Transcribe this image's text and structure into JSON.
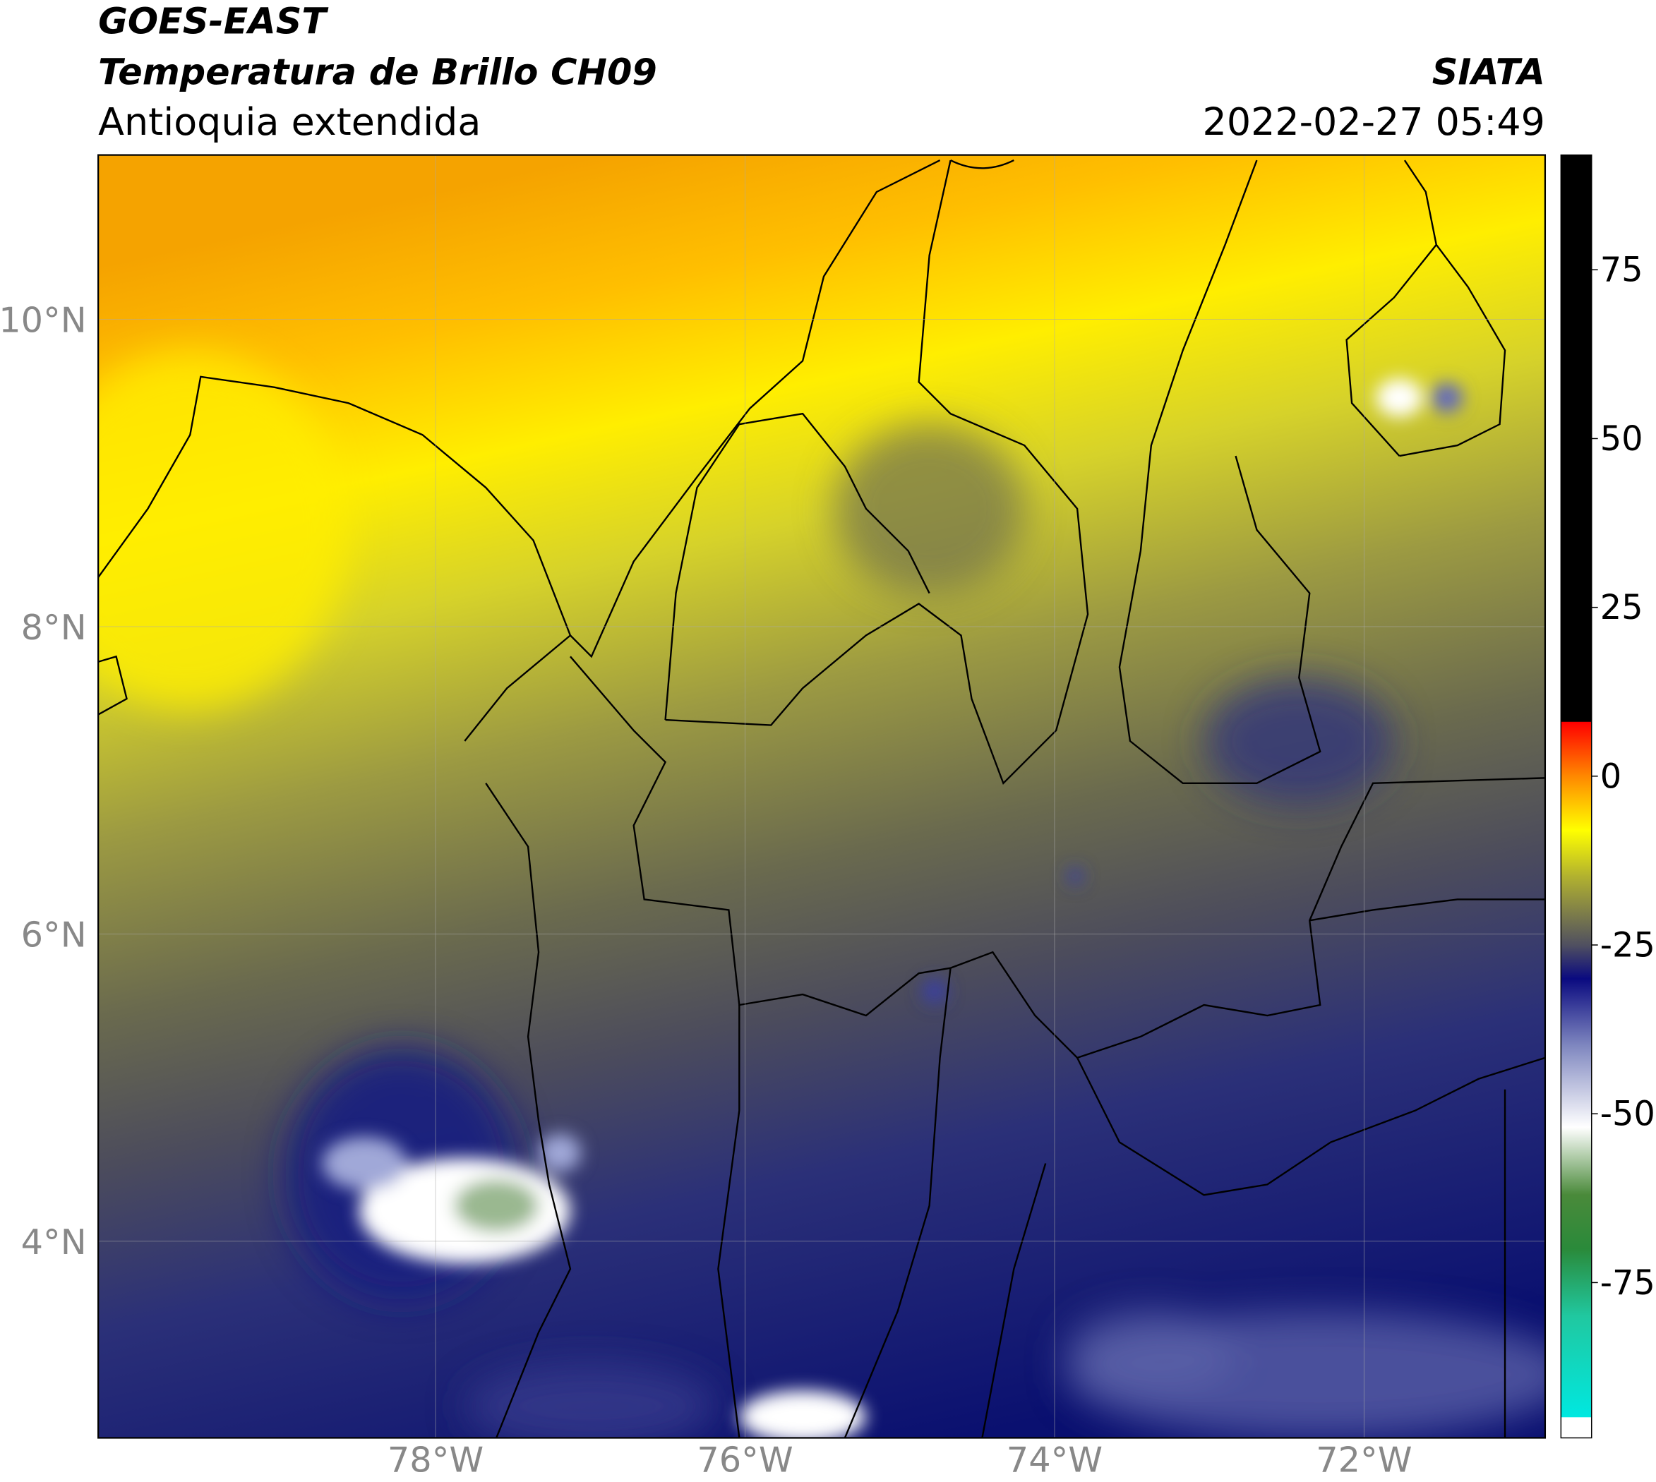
{
  "map": {
    "title": "GOES-EAST",
    "subtitle": "Temperatura de Brillo CH09",
    "region": "Antioquia extendida",
    "source": "SIATA",
    "datetime": "2022-02-27 05:49",
    "xlim": [
      -80.18,
      -70.83
    ],
    "ylim": [
      2.72,
      11.07
    ],
    "xticks": [
      {
        "value": -78,
        "label": "78°W"
      },
      {
        "value": -76,
        "label": "76°W"
      },
      {
        "value": -74,
        "label": "74°W"
      },
      {
        "value": -72,
        "label": "72°W"
      }
    ],
    "yticks": [
      {
        "value": 4,
        "label": "4°N"
      },
      {
        "value": 6,
        "label": "6°N"
      },
      {
        "value": 8,
        "label": "8°N"
      },
      {
        "value": 10,
        "label": "10°N"
      }
    ],
    "grid": true,
    "colorbar": {
      "clim": [
        -98,
        92
      ],
      "ticks": [
        75,
        50,
        25,
        0,
        -25,
        -50,
        -75
      ],
      "stops": [
        {
          "value": -98,
          "color": "#ffffff"
        },
        {
          "value": -95,
          "color": "#ffffff"
        },
        {
          "value": -94.9,
          "color": "#00e8e0"
        },
        {
          "value": -80,
          "color": "#20c8a0"
        },
        {
          "value": -70,
          "color": "#2a8a3a"
        },
        {
          "value": -62,
          "color": "#4a8a3a"
        },
        {
          "value": -52,
          "color": "#ffffff"
        },
        {
          "value": -40,
          "color": "#8088c0"
        },
        {
          "value": -30,
          "color": "#0a0a80"
        },
        {
          "value": -25,
          "color": "#505060"
        },
        {
          "value": -15,
          "color": "#b0b030"
        },
        {
          "value": -8,
          "color": "#ffff00"
        },
        {
          "value": 0,
          "color": "#ff8800"
        },
        {
          "value": 8,
          "color": "#ff0000"
        },
        {
          "value": 8.1,
          "color": "#000000"
        },
        {
          "value": 92,
          "color": "#000000"
        }
      ]
    }
  }
}
